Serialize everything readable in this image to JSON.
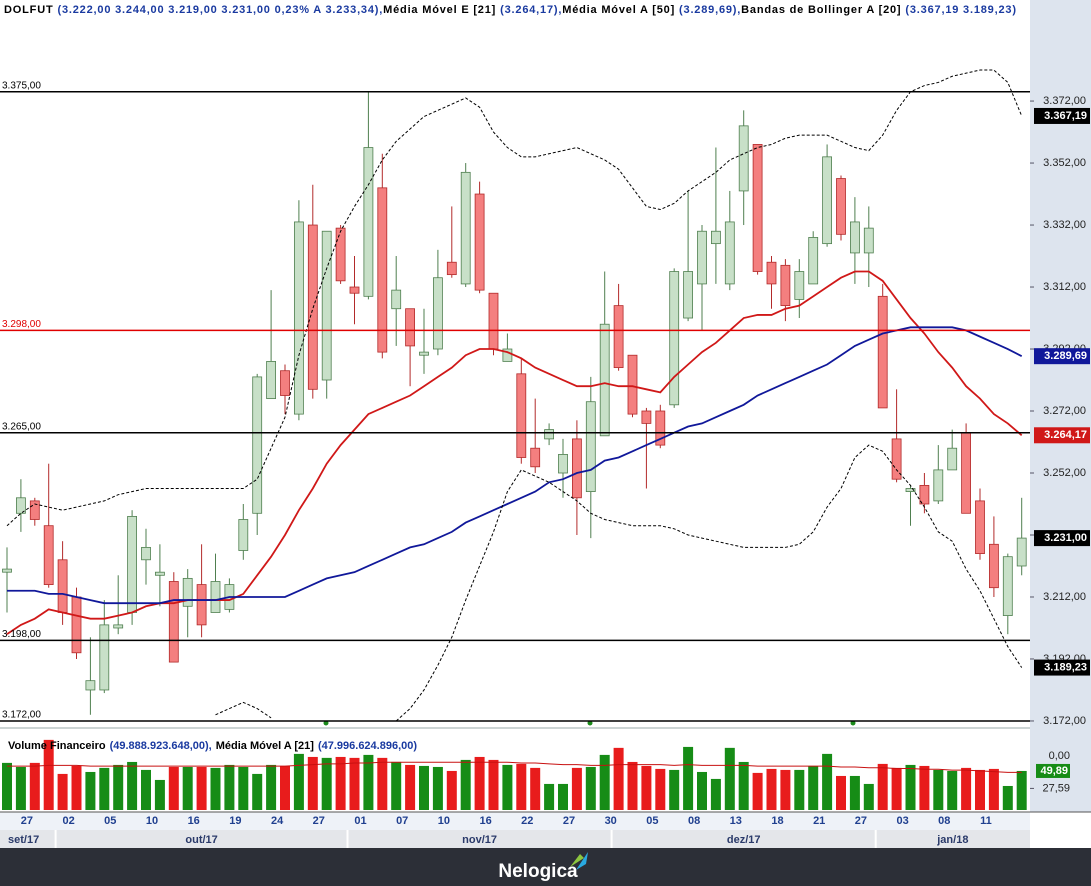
{
  "header": {
    "legend": [
      {
        "name": "DOLFUT",
        "values": "(3.222,00  3.244,00  3.219,00  3.231,00  0,23%  A 3.233,34),"
      },
      {
        "name": "Média Móvel E [21]",
        "values": "(3.264,17),"
      },
      {
        "name": "Média Móvel A [50]",
        "values": "(3.289,69),"
      },
      {
        "name": "Bandas de Bollinger A [20]",
        "values": "(3.367,19  3.189,23)"
      }
    ]
  },
  "chart_data": [
    {
      "type": "candlestick",
      "categories": [
        null,
        "27",
        null,
        null,
        "02",
        null,
        null,
        "05",
        null,
        null,
        "10",
        null,
        null,
        "16",
        null,
        null,
        "19",
        null,
        null,
        "24",
        null,
        null,
        "27",
        null,
        null,
        "01",
        null,
        null,
        "07",
        null,
        null,
        "10",
        null,
        null,
        "16",
        null,
        null,
        "22",
        null,
        null,
        "27",
        null,
        null,
        "30",
        null,
        null,
        "05",
        null,
        null,
        "08",
        null,
        null,
        "13",
        null,
        null,
        "18",
        null,
        null,
        "21",
        null,
        null,
        "27",
        null,
        null,
        "03",
        null,
        null,
        "08",
        null,
        null,
        "11",
        null,
        null,
        null
      ],
      "month_row": [
        "set/17",
        null,
        null,
        null,
        "out/17",
        null,
        null,
        null,
        null,
        null,
        null,
        null,
        null,
        null,
        null,
        null,
        null,
        null,
        null,
        null,
        null,
        null,
        null,
        null,
        null,
        "nov/17",
        null,
        null,
        null,
        null,
        null,
        null,
        null,
        null,
        null,
        null,
        null,
        null,
        null,
        null,
        null,
        null,
        null,
        null,
        "dez/17",
        null,
        null,
        null,
        null,
        null,
        null,
        null,
        null,
        null,
        null,
        null,
        null,
        null,
        null,
        null,
        null,
        null,
        null,
        "jan/18",
        null,
        null,
        null,
        null,
        null,
        null,
        null,
        null,
        null,
        null,
        null
      ],
      "open": [
        3220,
        3239,
        3243,
        3235,
        3224,
        3212,
        3182,
        3182,
        3202,
        3207,
        3224,
        3219,
        3217,
        3209,
        3216,
        3207,
        3208,
        3227,
        3239,
        3276,
        3285,
        3271,
        3332,
        3282,
        3331,
        3312,
        3309,
        3344,
        3305,
        3305,
        3290,
        3292,
        3320,
        3313,
        3342,
        3310,
        3288,
        3284,
        3260,
        3263,
        3252,
        3263,
        3246,
        3264,
        3306,
        3290,
        3272,
        3272,
        3274,
        3302,
        3313,
        3326,
        3313,
        3343,
        3358,
        3320,
        3319,
        3308,
        3313,
        3326,
        3347,
        3323,
        3323,
        3309,
        3263,
        3246,
        3248,
        3243,
        3253,
        3265,
        3243,
        3229,
        3206,
        3222
      ],
      "high": [
        3228,
        3250,
        3244,
        3255,
        3230,
        3215,
        3199,
        3211,
        3219,
        3240,
        3234,
        3229,
        3220,
        3221,
        3229,
        3226,
        3218,
        3242,
        3284,
        3311,
        3287,
        3340,
        3345,
        3330,
        3332,
        3322,
        3375,
        3355,
        3322,
        3305,
        3305,
        3324,
        3338,
        3352,
        3346,
        3310,
        3297,
        3289,
        3276,
        3268,
        3263,
        3269,
        3283,
        3317,
        3313,
        3290,
        3273,
        3274,
        3318,
        3343,
        3332,
        3357,
        3343,
        3369,
        3358,
        3322,
        3321,
        3321,
        3330,
        3358,
        3348,
        3341,
        3338,
        3313,
        3279,
        3248,
        3252,
        3261,
        3266,
        3268,
        3247,
        3238,
        3226,
        3244
      ],
      "low": [
        3207,
        3233,
        3235,
        3215,
        3203,
        3192,
        3174,
        3181,
        3200,
        3203,
        3216,
        3209,
        3191,
        3199,
        3199,
        3207,
        3207,
        3224,
        3232,
        3276,
        3271,
        3269,
        3276,
        3276,
        3313,
        3300,
        3308,
        3289,
        3293,
        3280,
        3284,
        3290,
        3315,
        3312,
        3310,
        3290,
        3288,
        3255,
        3252,
        3261,
        3244,
        3232,
        3231,
        3264,
        3285,
        3270,
        3247,
        3260,
        3273,
        3301,
        3298,
        3313,
        3311,
        3332,
        3316,
        3305,
        3301,
        3302,
        3313,
        3325,
        3327,
        3313,
        3312,
        3273,
        3249,
        3235,
        3239,
        3242,
        3253,
        3239,
        3224,
        3212,
        3200,
        3219
      ],
      "close": [
        3221,
        3244,
        3237,
        3216,
        3207,
        3194,
        3185,
        3203,
        3203,
        3238,
        3228,
        3220,
        3191,
        3218,
        3203,
        3217,
        3216,
        3237,
        3283,
        3288,
        3277,
        3333,
        3279,
        3330,
        3314,
        3310,
        3357,
        3291,
        3311,
        3293,
        3291,
        3315,
        3316,
        3349,
        3311,
        3292,
        3292,
        3257,
        3254,
        3266,
        3258,
        3244,
        3275,
        3300,
        3286,
        3271,
        3268,
        3261,
        3317,
        3317,
        3330,
        3330,
        3333,
        3364,
        3317,
        3313,
        3306,
        3317,
        3328,
        3354,
        3329,
        3333,
        3331,
        3273,
        3250,
        3247,
        3242,
        3253,
        3260,
        3239,
        3226,
        3215,
        3225,
        3231
      ],
      "last_label": "3.231,00",
      "up_color": "#c8e0c8",
      "down_color": "#f47f7f",
      "up_edge": "#4f7f4f",
      "down_edge": "#b22a2a",
      "lines": [
        {
          "color": "#d01818",
          "values": [
            3200,
            3203,
            3205,
            3208,
            3207,
            3206,
            3205,
            3205,
            3206,
            3207,
            3209,
            3210,
            3210,
            3211,
            3211,
            3211,
            3211,
            3213,
            3219,
            3225,
            3232,
            3240,
            3247,
            3255,
            3261,
            3266,
            3271,
            3273,
            3275,
            3277,
            3280,
            3283,
            3286,
            3290,
            3292,
            3292,
            3291,
            3289,
            3286,
            3284,
            3282,
            3280,
            3280,
            3281,
            3280,
            3280,
            3279,
            3278,
            3283,
            3287,
            3291,
            3294,
            3298,
            3302,
            3303,
            3303,
            3305,
            3306,
            3309,
            3312,
            3315,
            3317,
            3317,
            3314,
            3308,
            3302,
            3297,
            3291,
            3286,
            3280,
            3276,
            3271,
            3268,
            3264.17
          ],
          "last_label": "3.264,17"
        },
        {
          "color": "#10189a",
          "values": [
            3214,
            3214,
            3214,
            3213,
            3213,
            3212,
            3211,
            3210,
            3210,
            3210,
            3210,
            3210,
            3211,
            3211,
            3211,
            3211,
            3212,
            3212,
            3212,
            3212,
            3212,
            3214,
            3216,
            3218,
            3219,
            3220,
            3222,
            3224,
            3226,
            3228,
            3229,
            3231,
            3233,
            3236,
            3238,
            3240,
            3242,
            3244,
            3246,
            3249,
            3250,
            3252,
            3253,
            3256,
            3257,
            3259,
            3261,
            3263,
            3265,
            3267,
            3268,
            3270,
            3272,
            3274,
            3277,
            3279,
            3281,
            3283,
            3285,
            3287,
            3290,
            3293,
            3295,
            3297,
            3298,
            3299,
            3299,
            3299,
            3299,
            3298,
            3296,
            3294,
            3292,
            3289.69
          ],
          "last_label": "3.289,69"
        },
        {
          "color": "#000000",
          "dash": true,
          "values": [
            3235,
            3239,
            3242,
            3241,
            3240,
            3241,
            3242,
            3243,
            3245,
            3246,
            3247,
            3247,
            3247,
            3247,
            3247,
            3247,
            3247,
            3247,
            3250,
            3260,
            3270,
            3290,
            3305,
            3318,
            3330,
            3338,
            3345,
            3353,
            3359,
            3363,
            3367,
            3369,
            3371,
            3373,
            3370,
            3362,
            3357,
            3354,
            3354,
            3355,
            3356,
            3357,
            3355,
            3353,
            3350,
            3344,
            3338,
            3337,
            3339,
            3343,
            3346,
            3349,
            3353,
            3355,
            3357,
            3358,
            3360,
            3361,
            3361,
            3361,
            3359,
            3357,
            3356,
            3361,
            3369,
            3375,
            3377,
            3378,
            3380,
            3381,
            3382,
            3382,
            3378,
            3367.19
          ],
          "last_label": "3.367,19"
        },
        {
          "color": "#000000",
          "dash": true,
          "values": [
            null,
            null,
            null,
            null,
            null,
            null,
            null,
            null,
            null,
            null,
            null,
            null,
            null,
            null,
            null,
            3174,
            3176,
            3178,
            3176,
            3173,
            null,
            null,
            null,
            null,
            null,
            null,
            null,
            null,
            3172,
            3176,
            3182,
            3190,
            3199,
            3211,
            3222,
            3233,
            3246,
            3253,
            3251,
            3249,
            3246,
            3243,
            3239,
            3237,
            3236,
            3235,
            3235,
            3235,
            3234,
            3232,
            3231,
            3230,
            3229,
            3228,
            3228,
            3228,
            3228,
            3229,
            3233,
            3241,
            3247,
            3257,
            3261,
            3259,
            3253,
            3248,
            3241,
            3233,
            3230,
            3221,
            3214,
            3205,
            3196,
            3189.23
          ],
          "last_label": "3.189,23"
        }
      ],
      "levels": [
        {
          "value": 3375,
          "label": "3.375,00",
          "color": "#000000"
        },
        {
          "value": 3298,
          "label": "3.298,00",
          "color": "#e00000"
        },
        {
          "value": 3265,
          "label": "3.265,00",
          "color": "#000000"
        },
        {
          "value": 3198,
          "label": "3.198,00",
          "color": "#000000"
        },
        {
          "value": 3172,
          "label": "3.172,00",
          "color": "#000000"
        }
      ],
      "ylim": [
        3170.7,
        3404.6
      ],
      "yticks": [
        {
          "value": 3172,
          "label": "3.172,00"
        },
        {
          "value": 3192,
          "label": "3.192,00"
        },
        {
          "value": 3212,
          "label": "3.212,00"
        },
        {
          "value": 3232,
          "label": "3.232,00"
        },
        {
          "value": 3252,
          "label": "3.252,00"
        },
        {
          "value": 3272,
          "label": "3.272,00"
        },
        {
          "value": 3292,
          "label": "3.292,00"
        },
        {
          "value": 3312,
          "label": "3.312,00"
        },
        {
          "value": 3332,
          "label": "3.332,00"
        },
        {
          "value": 3352,
          "label": "3.352,00"
        },
        {
          "value": 3372,
          "label": "3.372,00"
        }
      ]
    },
    {
      "type": "bar",
      "title": "Volume Financeiro",
      "title_values": "(49.888.923.648,00),",
      "ma_name": "Média Móvel A [21]",
      "ma_values": "(47.996.624.896,00)",
      "values": [
        60.2,
        55.0,
        60.2,
        89.6,
        46.1,
        56.3,
        48.6,
        53.8,
        57.6,
        61.4,
        51.2,
        38.4,
        55.0,
        55.0,
        55.0,
        53.8,
        57.6,
        55.0,
        46.1,
        57.6,
        56.3,
        71.7,
        67.8,
        66.6,
        67.8,
        66.6,
        70.4,
        66.6,
        61.4,
        57.6,
        56.3,
        55.0,
        49.9,
        64.0,
        67.8,
        64.0,
        57.6,
        58.9,
        53.8,
        33.3,
        33.3,
        53.8,
        55.0,
        70.4,
        79.4,
        61.4,
        56.3,
        52.5,
        51.2,
        80.6,
        48.6,
        39.7,
        79.4,
        61.4,
        47.4,
        52.5,
        51.2,
        51.2,
        56.3,
        71.7,
        43.5,
        43.5,
        33.3,
        58.9,
        53.8,
        57.6,
        56.3,
        51.2,
        49.9,
        53.8,
        51.2,
        52.5,
        30.7,
        49.888923648
      ],
      "ma": [
        56,
        56,
        56,
        57,
        57,
        57,
        56,
        56,
        56,
        56,
        56,
        56,
        56,
        56,
        56,
        56,
        56,
        56,
        56,
        56,
        56,
        57,
        58,
        59,
        59,
        60,
        60,
        61,
        61,
        61,
        61,
        61,
        61,
        61,
        61,
        61,
        61,
        60,
        60,
        59,
        58,
        58,
        57,
        57,
        58,
        58,
        58,
        58,
        57,
        58,
        57,
        57,
        57,
        57,
        56,
        56,
        56,
        56,
        56,
        56,
        55,
        55,
        54,
        54,
        53,
        53,
        52,
        52,
        51,
        51,
        50,
        49,
        48,
        47.996624896
      ],
      "up_color": "#168c16",
      "down_color": "#e81c1c",
      "ma_color": "#c81010",
      "tag_color": "#168c16",
      "ylim": [
        0,
        92
      ],
      "yticks": [
        {
          "value": 27.59,
          "label": "27,59"
        }
      ],
      "last_label": "49,89",
      "top_label": "0,00"
    }
  ],
  "footer": {
    "brand": "Nelogica"
  }
}
